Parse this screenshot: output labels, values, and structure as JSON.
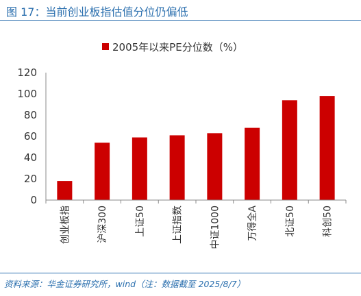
{
  "header": {
    "title": "图 17：当前创业板指估值分位仍偏低"
  },
  "footer": {
    "source": "资料来源：华金证券研究所，wind（注：数据截至 2025/8/7）"
  },
  "colors": {
    "bar": "#cc0000",
    "axis": "#888888",
    "title": "#2b6fae"
  },
  "chart_data": {
    "type": "bar",
    "title": "",
    "xlabel": "",
    "ylabel": "",
    "ylim": [
      0,
      120
    ],
    "yticks": [
      0,
      20,
      40,
      60,
      80,
      100,
      120
    ],
    "grid": false,
    "legend_position": "top-center",
    "categories": [
      "创业板指",
      "沪深300",
      "上证50",
      "上证指数",
      "中证1000",
      "万得全A",
      "北证50",
      "科创50"
    ],
    "series": [
      {
        "name": "2005年以来PE分位数（%）",
        "color": "#cc0000",
        "values": [
          18,
          54,
          59,
          61,
          63,
          68,
          94,
          98
        ]
      }
    ]
  }
}
